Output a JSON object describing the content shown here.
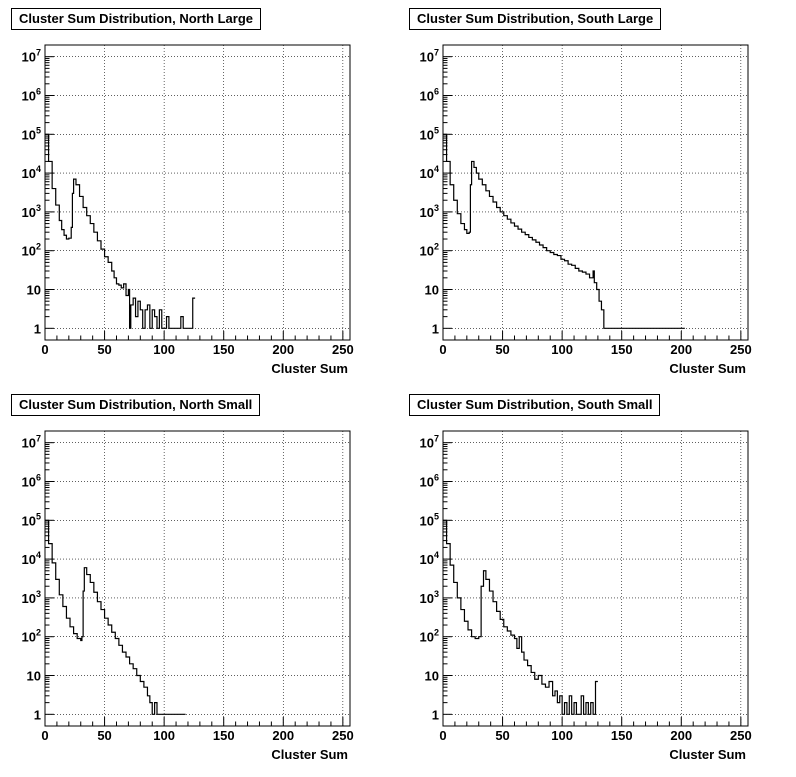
{
  "chart_data": [
    {
      "type": "histogram",
      "title": "Cluster Sum Distribution, North Large",
      "xlabel": "Cluster Sum",
      "ylabel": "",
      "xlim": [
        0,
        256
      ],
      "ylim": [
        0.5,
        20000000
      ],
      "yscale": "log",
      "grid": true,
      "x_ticks": [
        "0",
        "50",
        "100",
        "150",
        "200",
        "250"
      ],
      "y_ticks": [
        "1",
        "10",
        "10^2",
        "10^3",
        "10^4",
        "10^5",
        "10^6",
        "10^7"
      ],
      "series": [
        {
          "points": [
            [
              0,
              100000
            ],
            [
              3,
              20000
            ],
            [
              6,
              4000
            ],
            [
              9,
              1500
            ],
            [
              12,
              600
            ],
            [
              14,
              350
            ],
            [
              16,
              250
            ],
            [
              18,
              200
            ],
            [
              20,
              210
            ],
            [
              22,
              400
            ],
            [
              23,
              3000
            ],
            [
              24,
              7000
            ],
            [
              26,
              5000
            ],
            [
              29,
              2500
            ],
            [
              32,
              1300
            ],
            [
              35,
              800
            ],
            [
              38,
              500
            ],
            [
              41,
              300
            ],
            [
              44,
              180
            ],
            [
              47,
              110
            ],
            [
              50,
              70
            ],
            [
              53,
              50
            ],
            [
              56,
              30
            ],
            [
              58,
              20
            ],
            [
              60,
              14
            ],
            [
              62,
              13
            ],
            [
              64,
              11
            ],
            [
              66,
              14
            ],
            [
              68,
              7
            ],
            [
              70,
              10
            ],
            [
              71,
              1
            ],
            [
              72,
              4
            ],
            [
              74,
              6
            ],
            [
              76,
              2
            ],
            [
              78,
              5
            ],
            [
              80,
              3
            ],
            [
              82,
              1
            ],
            [
              84,
              3
            ],
            [
              86,
              4
            ],
            [
              88,
              1
            ],
            [
              90,
              3
            ],
            [
              92,
              2
            ],
            [
              94,
              1
            ],
            [
              96,
              3
            ],
            [
              98,
              1
            ],
            [
              100,
              1
            ],
            [
              102,
              2
            ],
            [
              104,
              1
            ],
            [
              106,
              1
            ],
            [
              108,
              1
            ],
            [
              110,
              1
            ],
            [
              112,
              1
            ],
            [
              114,
              2
            ],
            [
              116,
              1
            ],
            [
              118,
              1
            ],
            [
              120,
              1
            ],
            [
              122,
              1
            ],
            [
              124,
              6
            ]
          ]
        }
      ]
    },
    {
      "type": "histogram",
      "title": "Cluster Sum Distribution, South Large",
      "xlabel": "Cluster Sum",
      "ylabel": "",
      "xlim": [
        0,
        256
      ],
      "ylim": [
        0.5,
        20000000
      ],
      "yscale": "log",
      "grid": true,
      "x_ticks": [
        "0",
        "50",
        "100",
        "150",
        "200",
        "250"
      ],
      "y_ticks": [
        "1",
        "10",
        "10^2",
        "10^3",
        "10^4",
        "10^5",
        "10^6",
        "10^7"
      ],
      "series": [
        {
          "points": [
            [
              0,
              100000
            ],
            [
              3,
              20000
            ],
            [
              6,
              5000
            ],
            [
              9,
              2000
            ],
            [
              12,
              900
            ],
            [
              15,
              500
            ],
            [
              18,
              350
            ],
            [
              20,
              280
            ],
            [
              22,
              300
            ],
            [
              23,
              5000
            ],
            [
              24,
              20000
            ],
            [
              26,
              14000
            ],
            [
              28,
              10000
            ],
            [
              30,
              7000
            ],
            [
              33,
              5000
            ],
            [
              36,
              3500
            ],
            [
              39,
              2500
            ],
            [
              42,
              1800
            ],
            [
              45,
              1300
            ],
            [
              48,
              1000
            ],
            [
              51,
              800
            ],
            [
              54,
              650
            ],
            [
              57,
              520
            ],
            [
              60,
              430
            ],
            [
              63,
              360
            ],
            [
              66,
              300
            ],
            [
              69,
              260
            ],
            [
              72,
              220
            ],
            [
              75,
              190
            ],
            [
              78,
              165
            ],
            [
              81,
              140
            ],
            [
              84,
              120
            ],
            [
              87,
              100
            ],
            [
              90,
              90
            ],
            [
              93,
              80
            ],
            [
              96,
              75
            ],
            [
              99,
              60
            ],
            [
              102,
              55
            ],
            [
              105,
              45
            ],
            [
              108,
              42
            ],
            [
              111,
              35
            ],
            [
              114,
              30
            ],
            [
              117,
              28
            ],
            [
              120,
              25
            ],
            [
              123,
              20
            ],
            [
              126,
              30
            ],
            [
              127,
              15
            ],
            [
              129,
              10
            ],
            [
              131,
              5
            ],
            [
              133,
              3
            ],
            [
              135,
              1
            ],
            [
              137,
              1
            ],
            [
              197,
              1
            ],
            [
              199,
              1
            ],
            [
              201,
              1
            ]
          ]
        }
      ]
    },
    {
      "type": "histogram",
      "title": "Cluster Sum Distribution, North Small",
      "xlabel": "Cluster Sum",
      "ylabel": "",
      "xlim": [
        0,
        256
      ],
      "ylim": [
        0.5,
        20000000
      ],
      "yscale": "log",
      "grid": true,
      "x_ticks": [
        "0",
        "50",
        "100",
        "150",
        "200",
        "250"
      ],
      "y_ticks": [
        "1",
        "10",
        "10^2",
        "10^3",
        "10^4",
        "10^5",
        "10^6",
        "10^7"
      ],
      "series": [
        {
          "points": [
            [
              0,
              100000
            ],
            [
              3,
              25000
            ],
            [
              6,
              8000
            ],
            [
              9,
              3000
            ],
            [
              12,
              1200
            ],
            [
              15,
              600
            ],
            [
              18,
              300
            ],
            [
              21,
              180
            ],
            [
              24,
              120
            ],
            [
              27,
              90
            ],
            [
              30,
              80
            ],
            [
              31,
              100
            ],
            [
              32,
              1500
            ],
            [
              33,
              6000
            ],
            [
              35,
              4000
            ],
            [
              38,
              2500
            ],
            [
              41,
              1400
            ],
            [
              44,
              800
            ],
            [
              47,
              500
            ],
            [
              50,
              300
            ],
            [
              53,
              200
            ],
            [
              56,
              130
            ],
            [
              59,
              90
            ],
            [
              62,
              60
            ],
            [
              65,
              40
            ],
            [
              68,
              30
            ],
            [
              71,
              20
            ],
            [
              74,
              15
            ],
            [
              77,
              10
            ],
            [
              80,
              7
            ],
            [
              83,
              5
            ],
            [
              86,
              3
            ],
            [
              88,
              2
            ],
            [
              90,
              1
            ],
            [
              92,
              2
            ],
            [
              94,
              1
            ],
            [
              96,
              1
            ],
            [
              98,
              1
            ],
            [
              100,
              1
            ],
            [
              102,
              1
            ],
            [
              104,
              1
            ],
            [
              106,
              1
            ],
            [
              108,
              1
            ],
            [
              110,
              1
            ],
            [
              112,
              1
            ],
            [
              114,
              1
            ],
            [
              116,
              1
            ]
          ]
        }
      ]
    },
    {
      "type": "histogram",
      "title": "Cluster Sum Distribution, South Small",
      "xlabel": "Cluster Sum",
      "ylabel": "",
      "xlim": [
        0,
        256
      ],
      "ylim": [
        0.5,
        20000000
      ],
      "yscale": "log",
      "grid": true,
      "x_ticks": [
        "0",
        "50",
        "100",
        "150",
        "200",
        "250"
      ],
      "y_ticks": [
        "1",
        "10",
        "10^2",
        "10^3",
        "10^4",
        "10^5",
        "10^6",
        "10^7"
      ],
      "series": [
        {
          "points": [
            [
              0,
              100000
            ],
            [
              3,
              25000
            ],
            [
              6,
              7000
            ],
            [
              9,
              2500
            ],
            [
              12,
              1000
            ],
            [
              15,
              500
            ],
            [
              18,
              250
            ],
            [
              21,
              150
            ],
            [
              24,
              100
            ],
            [
              27,
              90
            ],
            [
              30,
              100
            ],
            [
              32,
              2000
            ],
            [
              34,
              5000
            ],
            [
              36,
              3000
            ],
            [
              39,
              1500
            ],
            [
              42,
              800
            ],
            [
              45,
              450
            ],
            [
              48,
              280
            ],
            [
              51,
              180
            ],
            [
              54,
              140
            ],
            [
              57,
              110
            ],
            [
              60,
              90
            ],
            [
              62,
              50
            ],
            [
              64,
              100
            ],
            [
              66,
              40
            ],
            [
              68,
              25
            ],
            [
              71,
              18
            ],
            [
              74,
              12
            ],
            [
              77,
              8
            ],
            [
              80,
              10
            ],
            [
              83,
              6
            ],
            [
              86,
              5
            ],
            [
              89,
              7
            ],
            [
              92,
              3
            ],
            [
              94,
              4
            ],
            [
              96,
              2
            ],
            [
              98,
              3
            ],
            [
              100,
              1
            ],
            [
              102,
              2
            ],
            [
              104,
              1
            ],
            [
              106,
              3
            ],
            [
              108,
              1
            ],
            [
              110,
              2
            ],
            [
              112,
              1
            ],
            [
              114,
              1
            ],
            [
              116,
              3
            ],
            [
              118,
              1
            ],
            [
              120,
              2
            ],
            [
              122,
              1
            ],
            [
              124,
              2
            ],
            [
              126,
              1
            ],
            [
              128,
              7
            ]
          ]
        }
      ]
    }
  ]
}
